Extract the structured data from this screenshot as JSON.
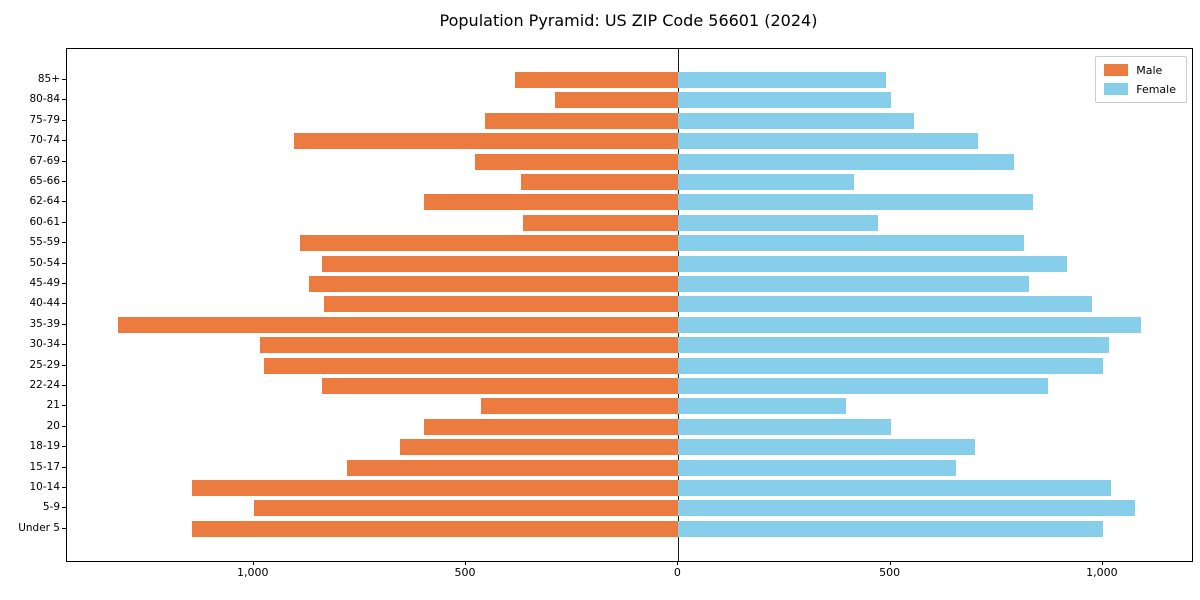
{
  "chart_data": {
    "type": "bar",
    "variant": "population-pyramid-horizontal-diverging",
    "title": "Population Pyramid: US ZIP Code 56601 (2024)",
    "categories_top_to_bottom": [
      "85+",
      "80-84",
      "75-79",
      "70-74",
      "67-69",
      "65-66",
      "62-64",
      "60-61",
      "55-59",
      "50-54",
      "45-49",
      "40-44",
      "35-39",
      "30-34",
      "25-29",
      "22-24",
      "21",
      "20",
      "18-19",
      "15-17",
      "10-14",
      "5-9",
      "Under 5"
    ],
    "series": [
      {
        "name": "Male",
        "side": "left",
        "color": "#ec7b3f",
        "values": [
          385,
          290,
          455,
          905,
          480,
          370,
          600,
          365,
          890,
          840,
          870,
          835,
          1320,
          985,
          975,
          840,
          465,
          600,
          655,
          780,
          1145,
          1000,
          1145
        ]
      },
      {
        "name": "Female",
        "side": "right",
        "color": "#87ceeb",
        "values": [
          490,
          500,
          555,
          705,
          790,
          415,
          835,
          470,
          815,
          915,
          825,
          975,
          1090,
          1015,
          1000,
          870,
          395,
          500,
          700,
          655,
          1020,
          1075,
          1000
        ]
      }
    ],
    "x_axis": {
      "xlim": [
        -1440,
        1210
      ],
      "ticks": [
        {
          "value": -1000,
          "label": "1,000"
        },
        {
          "value": -500,
          "label": "500"
        },
        {
          "value": 0,
          "label": "0"
        },
        {
          "value": 500,
          "label": "500"
        },
        {
          "value": 1000,
          "label": "1,000"
        }
      ]
    },
    "legend": {
      "position": "top-right",
      "entries": [
        "Male",
        "Female"
      ]
    },
    "grid": false,
    "zero_axis_line": true,
    "colors": {
      "male": "#ec7b3f",
      "female": "#87ceeb",
      "axis": "#000000",
      "legend_border": "#cccccc",
      "background": "#ffffff"
    }
  }
}
